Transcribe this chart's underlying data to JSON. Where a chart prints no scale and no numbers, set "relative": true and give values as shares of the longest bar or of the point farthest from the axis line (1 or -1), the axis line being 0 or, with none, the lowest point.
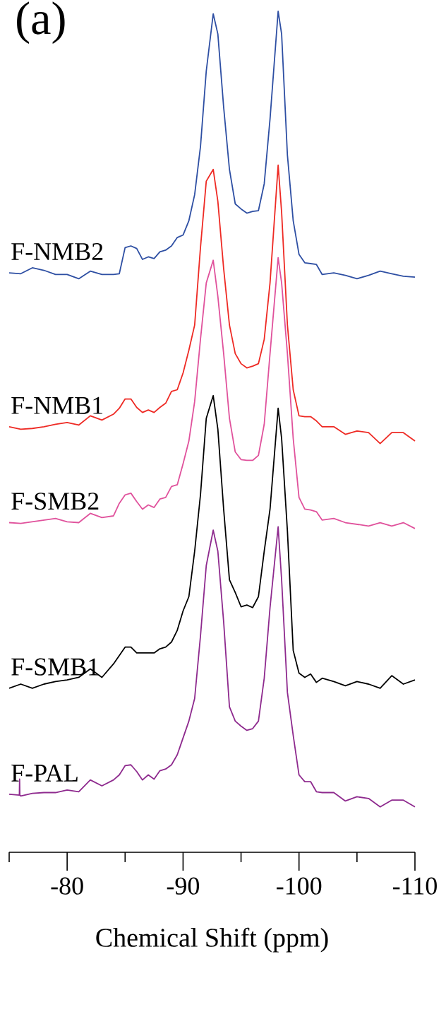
{
  "chart_data": {
    "type": "line",
    "title": "(a)",
    "xlabel": "Chemical Shift (ppm)",
    "relative": true,
    "marker": "none",
    "xlim": [
      -75,
      -110
    ],
    "xticks": [
      {
        "value": -75,
        "label": null
      },
      -80,
      {
        "value": -85,
        "label": null
      },
      -90,
      {
        "value": -95,
        "label": null
      },
      -100,
      {
        "value": -105,
        "label": null
      },
      -110
    ],
    "x": [
      -75,
      -76,
      -77,
      -78,
      -79,
      -80,
      -81,
      -82,
      -83,
      -84,
      -84.5,
      -85,
      -85.5,
      -86,
      -86.5,
      -87,
      -87.5,
      -88,
      -88.5,
      -89,
      -89.5,
      -90,
      -90.5,
      -91,
      -91.5,
      -92,
      -92.6,
      -93,
      -93.5,
      -94,
      -94.5,
      -95,
      -95.5,
      -96,
      -96.5,
      -97,
      -97.5,
      -98.2,
      -98.5,
      -99,
      -99.5,
      -100,
      -100.5,
      -101,
      -101.5,
      -102,
      -103,
      -104,
      -105,
      -106,
      -107,
      -108,
      -109,
      -110
    ],
    "series": [
      {
        "name": "F-NMB2",
        "color": "#2e4fa3",
        "values": [
          0.689,
          0.688,
          0.695,
          0.692,
          0.687,
          0.687,
          0.682,
          0.691,
          0.687,
          0.687,
          0.688,
          0.719,
          0.721,
          0.718,
          0.705,
          0.708,
          0.706,
          0.714,
          0.716,
          0.721,
          0.731,
          0.734,
          0.751,
          0.782,
          0.839,
          0.929,
          0.997,
          0.973,
          0.886,
          0.812,
          0.771,
          0.765,
          0.76,
          0.762,
          0.763,
          0.795,
          0.872,
          1.0,
          0.973,
          0.829,
          0.751,
          0.711,
          0.701,
          0.7,
          0.699,
          0.687,
          0.689,
          0.686,
          0.682,
          0.686,
          0.691,
          0.688,
          0.685,
          0.684
        ]
      },
      {
        "name": "F-NMB1",
        "color": "#ee2a24",
        "values": [
          0.506,
          0.503,
          0.504,
          0.506,
          0.509,
          0.511,
          0.508,
          0.519,
          0.514,
          0.521,
          0.528,
          0.539,
          0.539,
          0.529,
          0.523,
          0.526,
          0.523,
          0.529,
          0.534,
          0.548,
          0.55,
          0.57,
          0.597,
          0.627,
          0.719,
          0.798,
          0.812,
          0.774,
          0.694,
          0.627,
          0.593,
          0.581,
          0.576,
          0.578,
          0.581,
          0.61,
          0.677,
          0.817,
          0.761,
          0.627,
          0.55,
          0.519,
          0.518,
          0.518,
          0.513,
          0.506,
          0.506,
          0.497,
          0.501,
          0.499,
          0.486,
          0.499,
          0.499,
          0.489
        ]
      },
      {
        "name": "F-SMB2",
        "color": "#e0529c",
        "values": [
          0.392,
          0.391,
          0.393,
          0.395,
          0.397,
          0.393,
          0.392,
          0.403,
          0.398,
          0.4,
          0.415,
          0.425,
          0.427,
          0.417,
          0.408,
          0.413,
          0.41,
          0.42,
          0.422,
          0.435,
          0.437,
          0.462,
          0.489,
          0.536,
          0.61,
          0.677,
          0.704,
          0.661,
          0.593,
          0.516,
          0.476,
          0.467,
          0.466,
          0.466,
          0.472,
          0.509,
          0.593,
          0.707,
          0.677,
          0.593,
          0.492,
          0.422,
          0.408,
          0.407,
          0.405,
          0.395,
          0.397,
          0.392,
          0.39,
          0.388,
          0.392,
          0.388,
          0.392,
          0.385
        ]
      },
      {
        "name": "F-SMB1",
        "color": "#000000",
        "values": [
          0.195,
          0.2,
          0.195,
          0.2,
          0.203,
          0.205,
          0.208,
          0.218,
          0.208,
          0.224,
          0.234,
          0.244,
          0.244,
          0.237,
          0.237,
          0.237,
          0.237,
          0.242,
          0.244,
          0.25,
          0.264,
          0.287,
          0.304,
          0.358,
          0.425,
          0.516,
          0.543,
          0.503,
          0.408,
          0.324,
          0.309,
          0.292,
          0.294,
          0.291,
          0.304,
          0.358,
          0.408,
          0.528,
          0.492,
          0.382,
          0.24,
          0.213,
          0.208,
          0.212,
          0.202,
          0.207,
          0.203,
          0.198,
          0.203,
          0.2,
          0.195,
          0.21,
          0.2,
          0.205
        ]
      },
      {
        "name": "F-PAL",
        "color": "#8e2a8e",
        "x": [
          -75,
          -75.88,
          -75.9,
          -75.92,
          -76,
          -77,
          -78,
          -79,
          -80,
          -81,
          -82,
          -83,
          -84,
          -84.5,
          -85,
          -85.5,
          -86,
          -86.5,
          -87,
          -87.5,
          -88,
          -88.5,
          -89,
          -89.5,
          -90,
          -90.5,
          -91,
          -91.5,
          -92,
          -92.6,
          -93,
          -93.5,
          -94,
          -94.5,
          -95,
          -95.5,
          -96,
          -96.5,
          -97,
          -97.5,
          -98.2,
          -98.5,
          -99,
          -99.5,
          -100,
          -100.5,
          -101,
          -101.5,
          -102,
          -103,
          -104,
          -105,
          -106,
          -107,
          -108,
          -109,
          -110
        ],
        "values": [
          0.069,
          0.068,
          0.087,
          0.068,
          0.067,
          0.07,
          0.071,
          0.071,
          0.074,
          0.072,
          0.086,
          0.079,
          0.086,
          0.092,
          0.103,
          0.104,
          0.096,
          0.086,
          0.092,
          0.087,
          0.097,
          0.099,
          0.104,
          0.116,
          0.136,
          0.156,
          0.183,
          0.257,
          0.341,
          0.383,
          0.358,
          0.274,
          0.173,
          0.156,
          0.15,
          0.145,
          0.147,
          0.156,
          0.207,
          0.291,
          0.387,
          0.324,
          0.19,
          0.139,
          0.092,
          0.084,
          0.084,
          0.072,
          0.071,
          0.071,
          0.061,
          0.066,
          0.064,
          0.054,
          0.062,
          0.062,
          0.054
        ]
      }
    ]
  }
}
